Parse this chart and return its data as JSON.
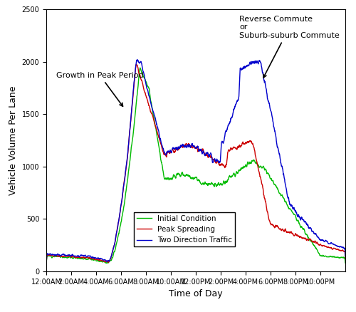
{
  "title": "",
  "xlabel": "Time of Day",
  "ylabel": "Vehicle Volume Per Lane",
  "ylim": [
    0,
    2500
  ],
  "yticks": [
    0,
    500,
    1000,
    1500,
    2000,
    2500
  ],
  "xtick_labels": [
    "12:00AM",
    "2:00AM",
    "4:00AM",
    "6:00AM",
    "8:00AM",
    "10:00AM",
    "12:00PM",
    "2:00PM",
    "4:00PM",
    "6:00PM",
    "8:00PM",
    "10:00PM"
  ],
  "legend_labels": [
    "Initial Condition",
    "Peak Spreading",
    "Two Direction Traffic"
  ],
  "line_colors": [
    "#00bb00",
    "#cc0000",
    "#0000cc"
  ],
  "background_color": "#ffffff",
  "figsize": [
    5.0,
    4.38
  ],
  "dpi": 100
}
